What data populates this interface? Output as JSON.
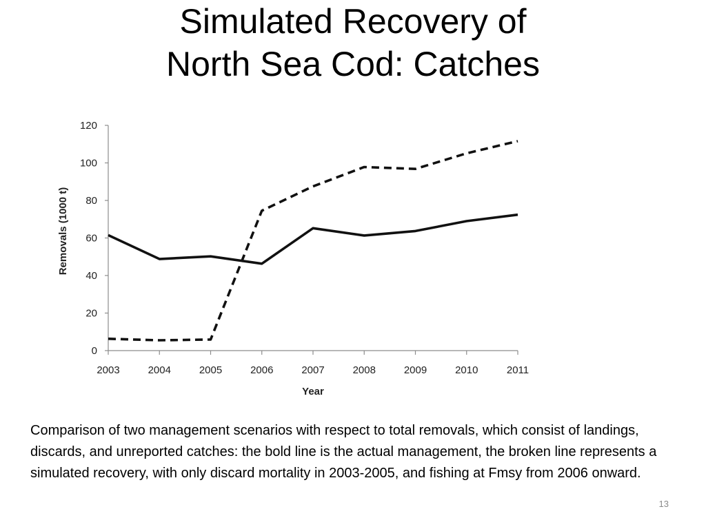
{
  "slide": {
    "title_line1": "Simulated Recovery of",
    "title_line2": "North Sea Cod: Catches",
    "caption": "Comparison of two management scenarios with respect to total removals, which consist of landings, discards, and unreported catches: the bold line is the actual management, the broken line represents a simulated recovery, with only discard mortality in 2003-2005, and fishing at Fmsy from 2006 onward.",
    "slide_number": "13"
  },
  "chart_data": {
    "type": "line",
    "title": "",
    "xlabel": "Year",
    "ylabel": "Removals  (1000 t)",
    "x": [
      2003,
      2004,
      2005,
      2006,
      2007,
      2008,
      2009,
      2010,
      2011
    ],
    "x_tick_labels": [
      "2003",
      "2004",
      "2005",
      "2006",
      "2007",
      "2008",
      "2009",
      "2010",
      "2011"
    ],
    "ylim": [
      0,
      120
    ],
    "y_ticks": [
      0,
      20,
      40,
      60,
      80,
      100,
      120
    ],
    "y_tick_labels": [
      "0",
      "20",
      "40",
      "60",
      "80",
      "100",
      "120"
    ],
    "grid": false,
    "legend": "none",
    "series": [
      {
        "style": "solid-bold",
        "color": "#111111",
        "values": [
          61.5,
          48.8,
          50.2,
          46.3,
          65.2,
          61.3,
          63.7,
          69.0,
          72.4
        ]
      },
      {
        "style": "dashed",
        "color": "#111111",
        "values": [
          6.3,
          5.5,
          5.9,
          74.5,
          87.5,
          97.8,
          96.8,
          105.1,
          111.6
        ]
      }
    ]
  }
}
